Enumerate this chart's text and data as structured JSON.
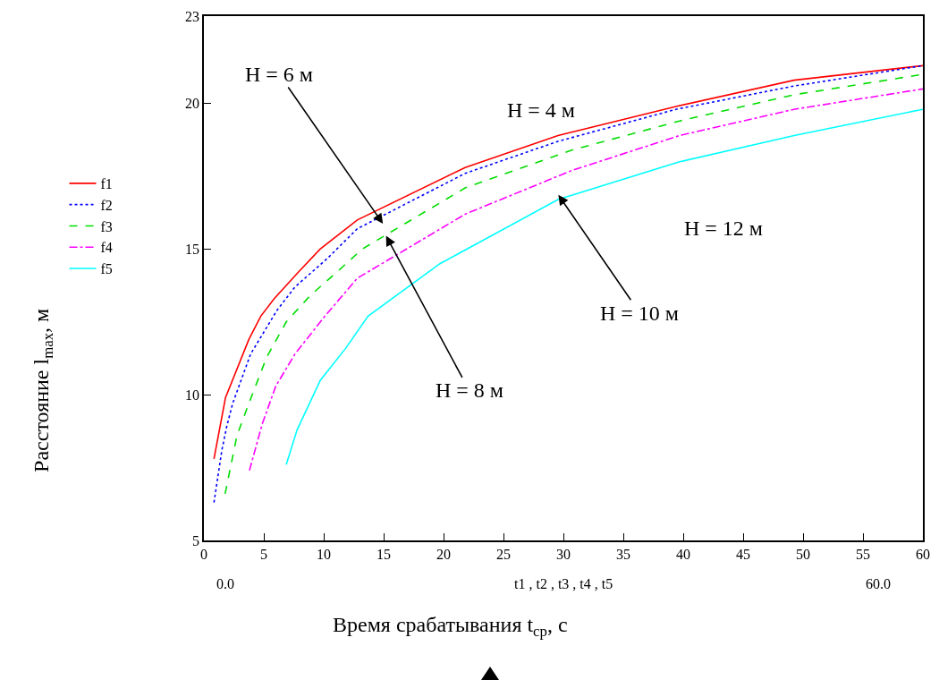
{
  "chart_data": {
    "type": "line",
    "xlabel": "Время срабатывания t$_{ср}$, с",
    "xlim": [
      0,
      60
    ],
    "xticks": [
      0,
      5,
      10,
      15,
      20,
      25,
      30,
      35,
      40,
      45,
      50,
      55,
      60
    ],
    "ylim": [
      5,
      23
    ],
    "yticks": [
      5,
      10,
      15,
      20,
      23
    ],
    "grid": false,
    "legend": "left",
    "marker": "none",
    "annotations": [
      "H = 6 м",
      "H = 4 м",
      "H = 12 м",
      "H = 10 м",
      {
        "text": "H = 8 м",
        "x": 15.2,
        "y": 15.46
      },
      "0.0",
      "t1 , t2 , t3 , t4 , t5",
      "60.0",
      "Расстояние l$_{max}$, м"
    ],
    "series": [
      {
        "name": "f1",
        "color": "#ff0000",
        "line_style": "solid",
        "x": [
          0.84,
          1.8,
          3.75,
          4.75,
          5.87,
          7.86,
          9.7,
          12.8,
          21.8,
          29.55,
          39.4,
          49.25,
          60
        ],
        "values": [
          7.8,
          9.9,
          11.9,
          12.7,
          13.3,
          14.2,
          15.0,
          16.0,
          17.8,
          18.9,
          19.9,
          20.8,
          21.3
        ]
      },
      {
        "name": "f2",
        "color": "#0000ff",
        "line_style": "dotted",
        "x": [
          0.84,
          1.5,
          1.9,
          2.4,
          3.9,
          6.1,
          7.6,
          10.35,
          12.8,
          21.8,
          29.55,
          39.4,
          49.25,
          60
        ],
        "values": [
          6.3,
          8.1,
          8.9,
          9.7,
          11.4,
          12.9,
          13.7,
          14.7,
          15.7,
          17.6,
          18.7,
          19.8,
          20.6,
          21.3
        ]
      },
      {
        "name": "f3",
        "color": "#00dd00",
        "line_style": "dashed",
        "x": [
          1.77,
          2.76,
          3.75,
          5.25,
          6.87,
          8.86,
          11.6,
          13.2,
          21.8,
          30.7,
          39.7,
          49.25,
          60
        ],
        "values": [
          6.6,
          8.6,
          9.7,
          11.3,
          12.5,
          13.4,
          14.4,
          15.0,
          17.1,
          18.4,
          19.4,
          20.3,
          21.0
        ]
      },
      {
        "name": "f4",
        "color": "#ff00ff",
        "line_style": "dashdot",
        "x": [
          3.8,
          4.87,
          6,
          7.6,
          10.1,
          12.8,
          21.8,
          30.7,
          39.7,
          49.25,
          60
        ],
        "values": [
          7.4,
          9.0,
          10.3,
          11.4,
          12.7,
          14.0,
          16.2,
          17.7,
          18.9,
          19.8,
          20.5
        ]
      },
      {
        "name": "f5",
        "color": "#00ffff",
        "line_style": "solid",
        "x": [
          6.87,
          7.78,
          9.72,
          11.84,
          13.7,
          19.7,
          29.55,
          39.7,
          49.25,
          60
        ],
        "values": [
          7.6,
          8.8,
          10.5,
          11.6,
          12.7,
          14.5,
          16.7,
          18.0,
          18.9,
          19.8
        ]
      }
    ]
  }
}
